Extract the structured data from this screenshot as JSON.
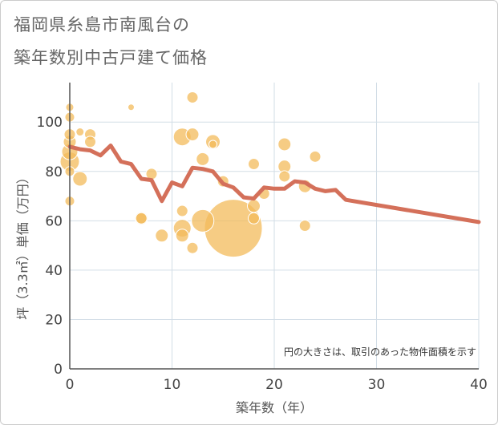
{
  "title_line1": "福岡県糸島市南風台の",
  "title_line2": "築年数別中古戸建て価格",
  "chart_data": {
    "type": "scatter",
    "title": "福岡県糸島市南風台の築年数別中古戸建て価格",
    "xlabel": "築年数（年）",
    "ylabel": "坪（3.3㎡）単価（万円）",
    "xlim": [
      0,
      40
    ],
    "ylim": [
      0,
      116
    ],
    "xticks": [
      0,
      10,
      20,
      30,
      40
    ],
    "yticks": [
      0,
      20,
      40,
      60,
      80,
      100
    ],
    "grid": true,
    "note": "円の大きさは、取引のあった物件面積を示す",
    "bubble_color": "#f3bb5b",
    "line_color": "#d4705a",
    "bubbles": [
      {
        "x": 0,
        "y": 106,
        "r": 5
      },
      {
        "x": 0,
        "y": 102,
        "r": 6
      },
      {
        "x": 0,
        "y": 95,
        "r": 7
      },
      {
        "x": 0,
        "y": 92,
        "r": 8
      },
      {
        "x": 0,
        "y": 88,
        "r": 10
      },
      {
        "x": 0,
        "y": 84,
        "r": 12
      },
      {
        "x": 0,
        "y": 80,
        "r": 6
      },
      {
        "x": 0,
        "y": 68,
        "r": 6
      },
      {
        "x": 1,
        "y": 96,
        "r": 5
      },
      {
        "x": 1,
        "y": 77,
        "r": 9
      },
      {
        "x": 2,
        "y": 95,
        "r": 7
      },
      {
        "x": 2,
        "y": 92,
        "r": 7
      },
      {
        "x": 6,
        "y": 106,
        "r": 4
      },
      {
        "x": 7,
        "y": 61,
        "r": 8
      },
      {
        "x": 7,
        "y": 61,
        "r": 7
      },
      {
        "x": 8,
        "y": 79,
        "r": 7
      },
      {
        "x": 9,
        "y": 54,
        "r": 8
      },
      {
        "x": 11,
        "y": 94,
        "r": 11
      },
      {
        "x": 11,
        "y": 64,
        "r": 7
      },
      {
        "x": 11,
        "y": 57,
        "r": 11
      },
      {
        "x": 11,
        "y": 54,
        "r": 8
      },
      {
        "x": 12,
        "y": 110,
        "r": 7
      },
      {
        "x": 12,
        "y": 95,
        "r": 8
      },
      {
        "x": 12,
        "y": 49,
        "r": 7
      },
      {
        "x": 13,
        "y": 85,
        "r": 8
      },
      {
        "x": 13,
        "y": 60,
        "r": 14
      },
      {
        "x": 14,
        "y": 92,
        "r": 9
      },
      {
        "x": 14,
        "y": 91,
        "r": 5
      },
      {
        "x": 15,
        "y": 76,
        "r": 7
      },
      {
        "x": 16,
        "y": 57,
        "r": 36
      },
      {
        "x": 18,
        "y": 83,
        "r": 7
      },
      {
        "x": 18,
        "y": 66,
        "r": 8
      },
      {
        "x": 18,
        "y": 61,
        "r": 7
      },
      {
        "x": 19,
        "y": 71,
        "r": 7
      },
      {
        "x": 21,
        "y": 91,
        "r": 8
      },
      {
        "x": 21,
        "y": 82,
        "r": 8
      },
      {
        "x": 21,
        "y": 78,
        "r": 7
      },
      {
        "x": 23,
        "y": 74,
        "r": 8
      },
      {
        "x": 23,
        "y": 58,
        "r": 7
      },
      {
        "x": 24,
        "y": 86,
        "r": 7
      }
    ],
    "trend_line": [
      {
        "x": 0,
        "y": 90
      },
      {
        "x": 1,
        "y": 89
      },
      {
        "x": 2,
        "y": 88.5
      },
      {
        "x": 3,
        "y": 86.5
      },
      {
        "x": 4,
        "y": 90.5
      },
      {
        "x": 5,
        "y": 84
      },
      {
        "x": 6,
        "y": 83
      },
      {
        "x": 7,
        "y": 77
      },
      {
        "x": 8,
        "y": 76.5
      },
      {
        "x": 9,
        "y": 68
      },
      {
        "x": 10,
        "y": 75.5
      },
      {
        "x": 11,
        "y": 74
      },
      {
        "x": 12,
        "y": 81.5
      },
      {
        "x": 13,
        "y": 81
      },
      {
        "x": 14,
        "y": 80
      },
      {
        "x": 15,
        "y": 75
      },
      {
        "x": 16,
        "y": 73.5
      },
      {
        "x": 17,
        "y": 69.5
      },
      {
        "x": 18,
        "y": 69
      },
      {
        "x": 19,
        "y": 73.5
      },
      {
        "x": 20,
        "y": 73
      },
      {
        "x": 21,
        "y": 73
      },
      {
        "x": 22,
        "y": 76
      },
      {
        "x": 23,
        "y": 75.5
      },
      {
        "x": 24,
        "y": 73
      },
      {
        "x": 25,
        "y": 72
      },
      {
        "x": 26,
        "y": 72.5
      },
      {
        "x": 27,
        "y": 68.5
      },
      {
        "x": 40,
        "y": 59.5
      }
    ]
  }
}
